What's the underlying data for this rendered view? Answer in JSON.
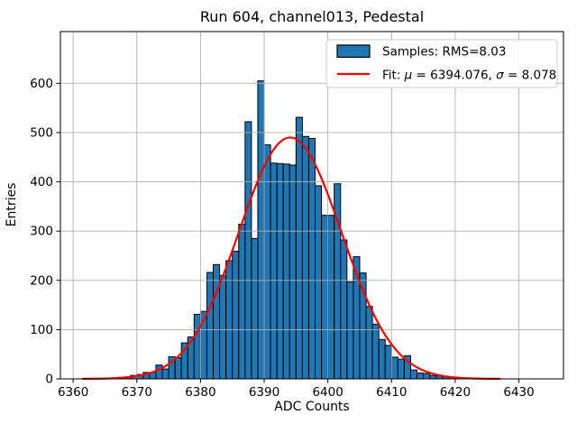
{
  "figure": {
    "title": "Run 604, channel013, Pedestal",
    "xlabel": "ADC Counts",
    "ylabel": "Entries"
  },
  "legend": {
    "samples_label": "Samples: RMS=8.03",
    "fit_parts": [
      "Fit: ",
      "μ",
      " = 6394.076, ",
      "σ",
      " = 8.078"
    ]
  },
  "chart_data": {
    "type": "bar",
    "title": "Run 604, channel013, Pedestal",
    "xlabel": "ADC Counts",
    "ylabel": "Entries",
    "bin_start": 6366,
    "bin_width": 1,
    "counts": [
      2,
      3,
      4,
      7,
      9,
      13,
      13,
      28,
      20,
      45,
      43,
      73,
      85,
      131,
      137,
      216,
      232,
      210,
      240,
      259,
      314,
      522,
      285,
      605,
      475,
      438,
      437,
      436,
      434,
      531,
      492,
      488,
      392,
      332,
      332,
      396,
      282,
      197,
      248,
      215,
      147,
      111,
      80,
      68,
      44,
      40,
      47,
      18,
      12,
      11,
      7,
      6,
      4,
      3
    ],
    "stats": {
      "rms": 8.03
    },
    "fit": {
      "mu": 6394.076,
      "sigma": 8.078,
      "amplitude": 490,
      "x_start": 6361.5,
      "x_end": 6427
    },
    "x_ticks": [
      6360,
      6370,
      6380,
      6390,
      6400,
      6410,
      6420,
      6430
    ],
    "y_ticks": [
      0,
      100,
      200,
      300,
      400,
      500,
      600
    ],
    "xlim": [
      6358,
      6437
    ],
    "ylim": [
      0,
      705
    ],
    "grid": true,
    "legend_position": "upper right",
    "colors": {
      "bar_fill": "#1f77b4",
      "bar_edge": "#000000",
      "fit_line": "#ff0000",
      "grid": "#b0b0b0",
      "spine": "#000000",
      "legend_border": "#cccccc",
      "background": "#ffffff"
    }
  }
}
